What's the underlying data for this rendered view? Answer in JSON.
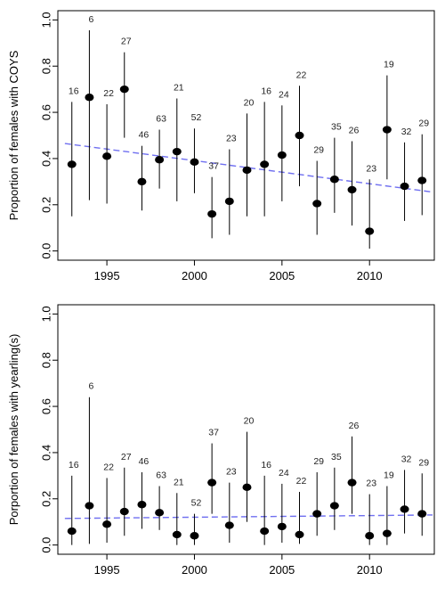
{
  "chart_data": [
    {
      "type": "scatter",
      "ylabel": "Proportion of females with COYS",
      "xlim": [
        1992.2,
        2013.7
      ],
      "ylim": [
        -0.04,
        1.04
      ],
      "x_ticks": [
        1995,
        2000,
        2005,
        2010
      ],
      "x_tick_labels": [
        "1995",
        "2000",
        "2005",
        "2010"
      ],
      "y_ticks": [
        0.0,
        0.2,
        0.4,
        0.6,
        0.8,
        1.0
      ],
      "y_tick_labels": [
        "0.0",
        "0.2",
        "0.4",
        "0.6",
        "0.8",
        "1.0"
      ],
      "grid": false,
      "series": [
        {
          "x": [
            1993,
            1994,
            1995,
            1996,
            1997,
            1998,
            1999,
            2000,
            2001,
            2002,
            2003,
            2004,
            2005,
            2006,
            2007,
            2008,
            2009,
            2010,
            2011,
            2012,
            2013
          ],
          "y": [
            0.375,
            0.665,
            0.41,
            0.7,
            0.3,
            0.395,
            0.43,
            0.385,
            0.16,
            0.215,
            0.35,
            0.375,
            0.415,
            0.5,
            0.205,
            0.31,
            0.265,
            0.085,
            0.525,
            0.28,
            0.305
          ],
          "lower": [
            0.15,
            0.22,
            0.205,
            0.49,
            0.175,
            0.27,
            0.215,
            0.25,
            0.055,
            0.07,
            0.15,
            0.15,
            0.215,
            0.28,
            0.07,
            0.165,
            0.11,
            0.01,
            0.31,
            0.13,
            0.155
          ],
          "upper": [
            0.645,
            0.955,
            0.635,
            0.86,
            0.455,
            0.525,
            0.66,
            0.53,
            0.32,
            0.44,
            0.595,
            0.645,
            0.63,
            0.715,
            0.39,
            0.49,
            0.475,
            0.31,
            0.76,
            0.47,
            0.505
          ],
          "n": [
            "16",
            "6",
            "22",
            "27",
            "46",
            "63",
            "21",
            "52",
            "37",
            "23",
            "20",
            "16",
            "24",
            "22",
            "29",
            "35",
            "26",
            "23",
            "19",
            "32",
            "29"
          ]
        }
      ],
      "trend": {
        "style": "dashed",
        "color": "#6f6ff0",
        "x": [
          1992.6,
          2013.6
        ],
        "y": [
          0.465,
          0.255
        ]
      }
    },
    {
      "type": "scatter",
      "ylabel": "Porportion of females with yearling(s)",
      "xlim": [
        1992.2,
        2013.7
      ],
      "ylim": [
        -0.04,
        1.04
      ],
      "x_ticks": [
        1995,
        2000,
        2005,
        2010
      ],
      "x_tick_labels": [
        "1995",
        "2000",
        "2005",
        "2010"
      ],
      "y_ticks": [
        0.0,
        0.2,
        0.4,
        0.6,
        0.8,
        1.0
      ],
      "y_tick_labels": [
        "0.0",
        "0.2",
        "0.4",
        "0.6",
        "0.8",
        "1.0"
      ],
      "grid": false,
      "series": [
        {
          "x": [
            1993,
            1994,
            1995,
            1996,
            1997,
            1998,
            1999,
            2000,
            2001,
            2002,
            2003,
            2004,
            2005,
            2006,
            2007,
            2008,
            2009,
            2010,
            2011,
            2012,
            2013
          ],
          "y": [
            0.06,
            0.17,
            0.09,
            0.145,
            0.175,
            0.14,
            0.045,
            0.04,
            0.27,
            0.085,
            0.25,
            0.06,
            0.08,
            0.045,
            0.135,
            0.17,
            0.27,
            0.04,
            0.05,
            0.155,
            0.135
          ],
          "lower": [
            0.0,
            0.005,
            0.01,
            0.04,
            0.07,
            0.065,
            0.0,
            0.0,
            0.135,
            0.01,
            0.1,
            0.0,
            0.01,
            0.005,
            0.04,
            0.065,
            0.135,
            0.0,
            0.0,
            0.05,
            0.04
          ],
          "upper": [
            0.3,
            0.64,
            0.29,
            0.335,
            0.315,
            0.255,
            0.225,
            0.135,
            0.44,
            0.27,
            0.49,
            0.3,
            0.265,
            0.23,
            0.315,
            0.335,
            0.47,
            0.22,
            0.255,
            0.325,
            0.31
          ],
          "n": [
            "16",
            "6",
            "22",
            "27",
            "46",
            "63",
            "21",
            "52",
            "37",
            "23",
            "20",
            "16",
            "24",
            "22",
            "29",
            "35",
            "26",
            "23",
            "19",
            "32",
            "29"
          ]
        }
      ],
      "trend": {
        "style": "dashed",
        "color": "#6f6ff0",
        "x": [
          1992.6,
          2013.6
        ],
        "y": [
          0.115,
          0.13
        ]
      }
    }
  ]
}
